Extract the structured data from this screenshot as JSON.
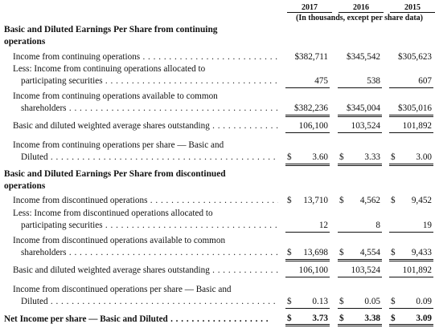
{
  "header": {
    "years": [
      "2017",
      "2016",
      "2015"
    ],
    "units": "(In thousands, except per share data)"
  },
  "continuing": {
    "title_line1": "Basic and Diluted Earnings Per Share from continuing",
    "title_line2": "operations",
    "income": {
      "label": "Income from continuing operations",
      "values": [
        {
          "cur": "",
          "num": "$382,711"
        },
        {
          "cur": "",
          "num": "$345,542"
        },
        {
          "cur": "",
          "num": "$305,623"
        }
      ]
    },
    "less_allocated": {
      "label_line1": "Less: Income from continuing operations allocated to",
      "label_line2": "participating securities",
      "values": [
        {
          "cur": "",
          "num": "475"
        },
        {
          "cur": "",
          "num": "538"
        },
        {
          "cur": "",
          "num": "607"
        }
      ]
    },
    "available": {
      "label_line1": "Income from continuing operations available to common",
      "label_line2": "shareholders",
      "values": [
        {
          "cur": "",
          "num": "$382,236"
        },
        {
          "cur": "",
          "num": "$345,004"
        },
        {
          "cur": "",
          "num": "$305,016"
        }
      ]
    },
    "shares": {
      "label": "Basic and diluted weighted average shares outstanding",
      "values": [
        {
          "cur": "",
          "num": "106,100"
        },
        {
          "cur": "",
          "num": "103,524"
        },
        {
          "cur": "",
          "num": "101,892"
        }
      ]
    },
    "per_share": {
      "label_line1": "Income from continuing operations per share — Basic and",
      "label_line2": "Diluted",
      "values": [
        {
          "cur": "$",
          "num": "3.60"
        },
        {
          "cur": "$",
          "num": "3.33"
        },
        {
          "cur": "$",
          "num": "3.00"
        }
      ]
    }
  },
  "discontinued": {
    "title_line1": "Basic and Diluted Earnings Per Share from discontinued",
    "title_line2": "operations",
    "income": {
      "label": "Income from discontinued operations",
      "values": [
        {
          "cur": "$",
          "num": "13,710"
        },
        {
          "cur": "$",
          "num": "4,562"
        },
        {
          "cur": "$",
          "num": "9,452"
        }
      ]
    },
    "less_allocated": {
      "label_line1": "Less: Income from discontinued operations allocated to",
      "label_line2": "participating securities",
      "values": [
        {
          "cur": "",
          "num": "12"
        },
        {
          "cur": "",
          "num": "8"
        },
        {
          "cur": "",
          "num": "19"
        }
      ]
    },
    "available": {
      "label_line1": "Income from discontinued operations available to common",
      "label_line2": "shareholders",
      "values": [
        {
          "cur": "$",
          "num": "13,698"
        },
        {
          "cur": "$",
          "num": "4,554"
        },
        {
          "cur": "$",
          "num": "9,433"
        }
      ]
    },
    "shares": {
      "label": "Basic and diluted weighted average shares outstanding",
      "values": [
        {
          "cur": "",
          "num": "106,100"
        },
        {
          "cur": "",
          "num": "103,524"
        },
        {
          "cur": "",
          "num": "101,892"
        }
      ]
    },
    "per_share": {
      "label_line1": "Income from discontinued operations per share — Basic and",
      "label_line2": "Diluted",
      "values": [
        {
          "cur": "$",
          "num": "0.13"
        },
        {
          "cur": "$",
          "num": "0.05"
        },
        {
          "cur": "$",
          "num": "0.09"
        }
      ]
    }
  },
  "net_income": {
    "label": "Net Income per share — Basic and Diluted",
    "values": [
      {
        "cur": "$",
        "num": "3.73"
      },
      {
        "cur": "$",
        "num": "3.38"
      },
      {
        "cur": "$",
        "num": "3.09"
      }
    ]
  }
}
